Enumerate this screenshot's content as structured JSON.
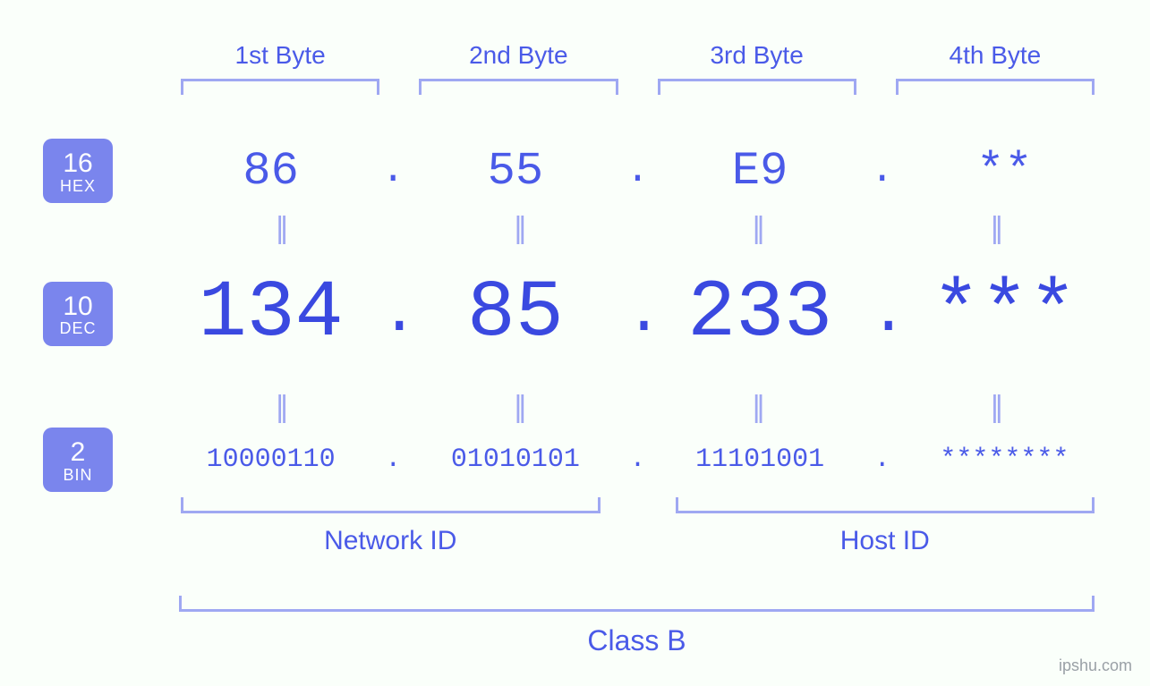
{
  "bytes": {
    "labels": [
      "1st Byte",
      "2nd Byte",
      "3rd Byte",
      "4th Byte"
    ]
  },
  "hex": {
    "badge_num": "16",
    "badge_name": "HEX",
    "values": [
      "86",
      "55",
      "E9",
      "**"
    ],
    "sep": "."
  },
  "dec": {
    "badge_num": "10",
    "badge_name": "DEC",
    "values": [
      "134",
      "85",
      "233",
      "***"
    ],
    "sep": "."
  },
  "bin": {
    "badge_num": "2",
    "badge_name": "BIN",
    "values": [
      "10000110",
      "01010101",
      "11101001",
      "********"
    ],
    "sep": "."
  },
  "eq_symbol": "||",
  "groups": {
    "network_id": "Network ID",
    "host_id": "Host ID",
    "class": "Class B"
  },
  "watermark": "ipshu.com",
  "style": {
    "background": "#fafffa",
    "primary_text": "#4a5ae8",
    "strong_text": "#3a49e0",
    "bracket_color": "#9fa8f2",
    "badge_bg": "#7a85ed",
    "badge_fg": "#ffffff",
    "byte_label_fontsize": 28,
    "hex_fontsize": 52,
    "dec_fontsize": 90,
    "bin_fontsize": 30,
    "eq_fontsize": 34,
    "group_label_fontsize": 30,
    "class_label_fontsize": 32,
    "badge_num_fontsize": 30,
    "badge_name_fontsize": 18,
    "bracket_thickness": 3,
    "badge_radius": 10
  }
}
